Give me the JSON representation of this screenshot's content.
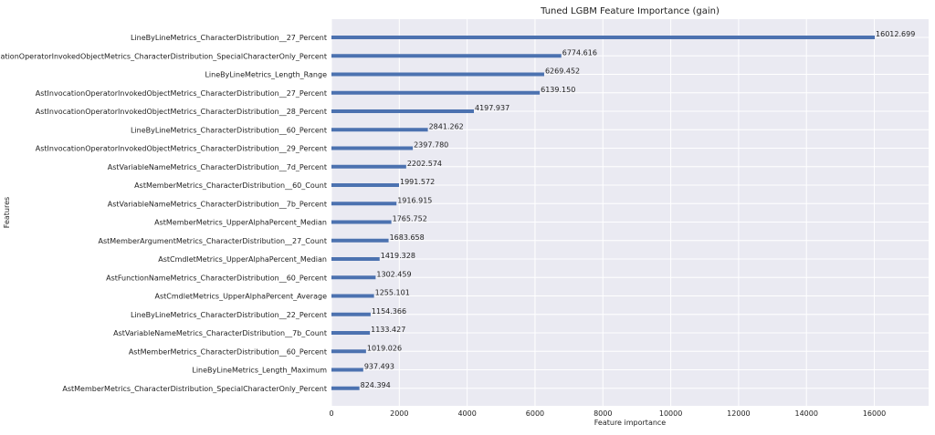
{
  "chart_data": {
    "type": "bar",
    "orientation": "horizontal",
    "title": "Tuned LGBM Feature Importance (gain)",
    "xlabel": "Feature importance",
    "ylabel": "Features",
    "xlim": [
      0,
      17600
    ],
    "xticks": [
      "0",
      "2000",
      "4000",
      "6000",
      "8000",
      "10000",
      "12000",
      "14000",
      "16000"
    ],
    "grid": true,
    "bar_color": "#4c72b0",
    "background_color": "#eaeaf2",
    "categories": [
      "LineByLineMetrics_CharacterDistribution__27_Percent",
      "AstInvocationOperatorInvokedObjectMetrics_CharacterDistribution_SpecialCharacterOnly_Percent",
      "LineByLineMetrics_Length_Range",
      "AstInvocationOperatorInvokedObjectMetrics_CharacterDistribution__27_Percent",
      "AstInvocationOperatorInvokedObjectMetrics_CharacterDistribution__28_Percent",
      "LineByLineMetrics_CharacterDistribution__60_Percent",
      "AstInvocationOperatorInvokedObjectMetrics_CharacterDistribution__29_Percent",
      "AstVariableNameMetrics_CharacterDistribution__7d_Percent",
      "AstMemberMetrics_CharacterDistribution__60_Count",
      "AstVariableNameMetrics_CharacterDistribution__7b_Percent",
      "AstMemberMetrics_UpperAlphaPercent_Median",
      "AstMemberArgumentMetrics_CharacterDistribution__27_Count",
      "AstCmdletMetrics_UpperAlphaPercent_Median",
      "AstFunctionNameMetrics_CharacterDistribution__60_Percent",
      "AstCmdletMetrics_UpperAlphaPercent_Average",
      "LineByLineMetrics_CharacterDistribution__22_Percent",
      "AstVariableNameMetrics_CharacterDistribution__7b_Count",
      "AstMemberMetrics_CharacterDistribution__60_Percent",
      "LineByLineMetrics_Length_Maximum",
      "AstMemberMetrics_CharacterDistribution_SpecialCharacterOnly_Percent"
    ],
    "values": [
      16012.699,
      6774.616,
      6269.452,
      6139.15,
      4197.937,
      2841.262,
      2397.78,
      2202.574,
      1991.572,
      1916.915,
      1765.752,
      1683.658,
      1419.328,
      1302.459,
      1255.101,
      1154.366,
      1133.427,
      1019.026,
      937.493,
      824.394
    ],
    "value_labels": [
      "16012.699",
      "6774.616",
      "6269.452",
      "6139.150",
      "4197.937",
      "2841.262",
      "2397.780",
      "2202.574",
      "1991.572",
      "1916.915",
      "1765.752",
      "1683.658",
      "1419.328",
      "1302.459",
      "1255.101",
      "1154.366",
      "1133.427",
      "1019.026",
      "937.493",
      "824.394"
    ]
  }
}
